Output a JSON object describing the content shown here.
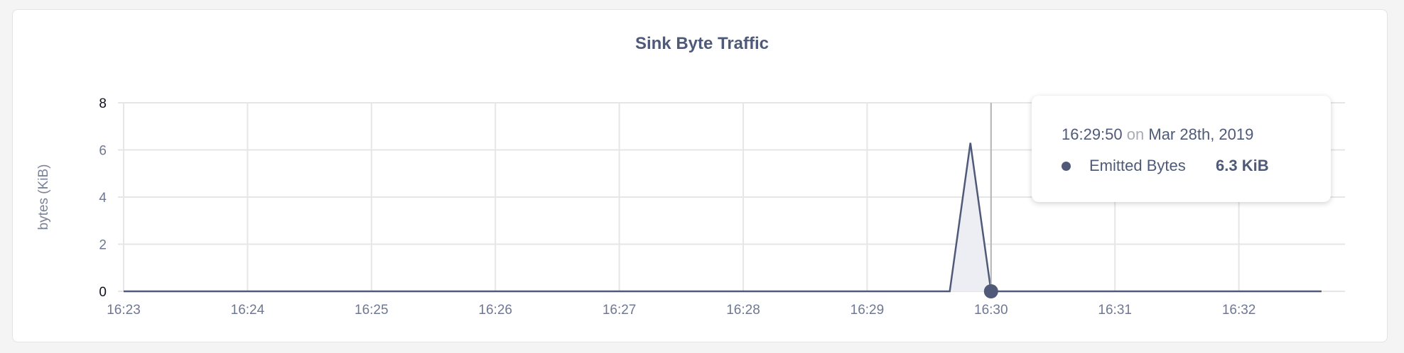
{
  "chart_data": {
    "type": "area",
    "title": "Sink Byte Traffic",
    "ylabel": "bytes (KiB)",
    "xlabel": "",
    "ylim": [
      0,
      8
    ],
    "yticks": [
      "0",
      "2",
      "4",
      "6",
      "8"
    ],
    "xticks": [
      "16:23",
      "16:24",
      "16:25",
      "16:26",
      "16:27",
      "16:28",
      "16:29",
      "16:30",
      "16:31",
      "16:32"
    ],
    "xlim": [
      "16:23:00",
      "16:32:40"
    ],
    "grid": true,
    "series": [
      {
        "name": "Emitted Bytes",
        "color": "#505a78",
        "fill": "#eceef3",
        "x": [
          "16:23:00",
          "16:29:40",
          "16:29:50",
          "16:30:00",
          "16:32:40"
        ],
        "y": [
          0,
          0,
          6.3,
          0,
          0
        ]
      }
    ],
    "hover": {
      "x": "16:30:00",
      "y": 0
    }
  },
  "tooltip": {
    "time": "16:29:50",
    "on": "on",
    "date": "Mar 28th, 2019",
    "series_name": "Emitted Bytes",
    "value": "6.3 KiB"
  }
}
